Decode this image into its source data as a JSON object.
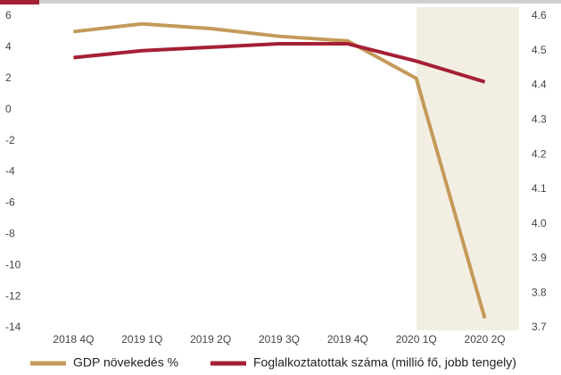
{
  "chart_data": {
    "type": "line",
    "categories": [
      "2018 4Q",
      "2019 1Q",
      "2019 2Q",
      "2019 3Q",
      "2019 4Q",
      "2020 1Q",
      "2020 2Q"
    ],
    "series": [
      {
        "name": "GDP növekedés %",
        "color": "#c49a5a",
        "values": [
          5.0,
          5.5,
          5.2,
          4.7,
          4.4,
          2.0,
          -13.4
        ]
      },
      {
        "name": "Foglalkoztatottak száma (millió fő, jobb tengely)",
        "color": "#a51f35",
        "axis": "y2",
        "values": [
          4.48,
          4.5,
          4.51,
          4.52,
          4.52,
          4.47,
          4.41
        ]
      }
    ],
    "ylim": [
      -14,
      6
    ],
    "yticks": [
      -14,
      -12,
      -10,
      -8,
      -6,
      -4,
      -2,
      0,
      2,
      4,
      6
    ],
    "y2lim": [
      3.7,
      4.6
    ],
    "y2ticks": [
      {
        "value": 3.7,
        "label": "3.7"
      },
      {
        "value": 3.8,
        "label": "3.8"
      },
      {
        "value": 3.9,
        "label": "3.9"
      },
      {
        "value": 4.0,
        "label": "4.0"
      },
      {
        "value": 4.1,
        "label": "4.1"
      },
      {
        "value": 4.2,
        "label": "4.2"
      },
      {
        "value": 4.3,
        "label": "4.3"
      },
      {
        "value": 4.4,
        "label": "4.4"
      },
      {
        "value": 4.5,
        "label": "4.5"
      },
      {
        "value": 4.6,
        "label": "4.6"
      }
    ]
  }
}
